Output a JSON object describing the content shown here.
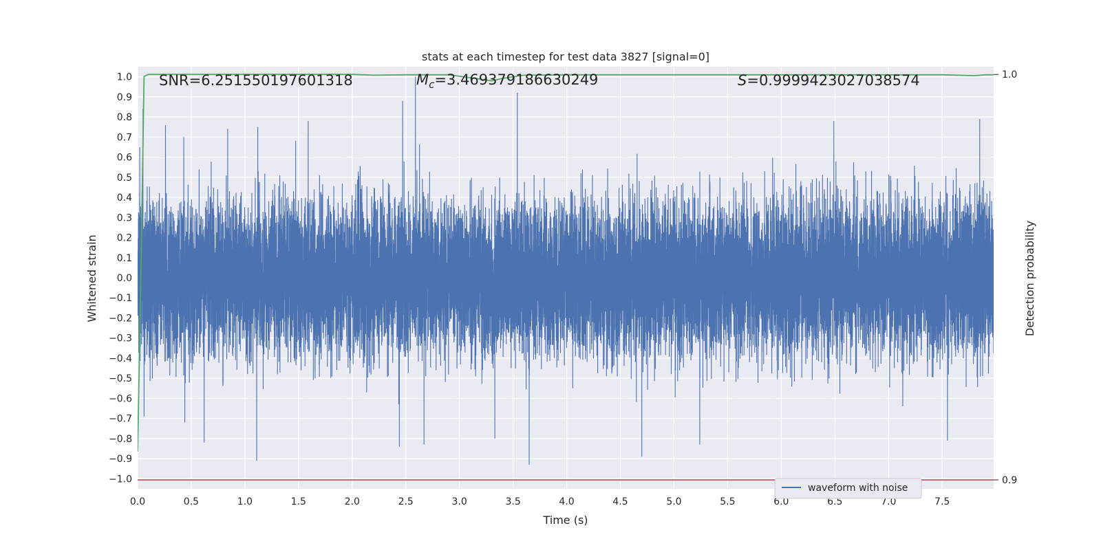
{
  "chart_data": {
    "type": "line",
    "title": "stats at each timestep for test data 3827 [signal=0]",
    "xlabel": "Time (s)",
    "ylabel": "Whitened strain",
    "y2label": "Detection probability",
    "xlim": [
      0.0,
      7.98
    ],
    "ylim": [
      -1.05,
      1.05
    ],
    "y2lim": [
      0.8978,
      1.0019
    ],
    "grid": true,
    "legend_position": "bottom-right",
    "xticks": [
      "0.0",
      "0.5",
      "1.0",
      "1.5",
      "2.0",
      "2.5",
      "3.0",
      "3.5",
      "4.0",
      "4.5",
      "5.0",
      "5.5",
      "6.0",
      "6.5",
      "7.0",
      "7.5"
    ],
    "xtick_values": [
      0.0,
      0.5,
      1.0,
      1.5,
      2.0,
      2.5,
      3.0,
      3.5,
      4.0,
      4.5,
      5.0,
      5.5,
      6.0,
      6.5,
      7.0,
      7.5
    ],
    "yticks": [
      "1.0",
      "0.9",
      "0.8",
      "0.7",
      "0.6",
      "0.5",
      "0.4",
      "0.3",
      "0.2",
      "0.1",
      "0.0",
      "−0.1",
      "−0.2",
      "−0.3",
      "−0.4",
      "−0.5",
      "−0.6",
      "−0.7",
      "−0.8",
      "−0.9",
      "−1.0"
    ],
    "ytick_values": [
      1.0,
      0.9,
      0.8,
      0.7,
      0.6,
      0.5,
      0.4,
      0.3,
      0.2,
      0.1,
      0.0,
      -0.1,
      -0.2,
      -0.3,
      -0.4,
      -0.5,
      -0.6,
      -0.7,
      -0.8,
      -0.9,
      -1.0
    ],
    "y2ticks": [
      "1.0",
      "0.9"
    ],
    "y2tick_values": [
      1.0,
      0.9
    ],
    "annotations": {
      "snr": "SNR=6.251550197601318",
      "mc_symbol": "M",
      "mc_sub": "c",
      "mc_value": "=3.469379186630249",
      "s_symbol": "S",
      "s_value": "=0.9999423027038574"
    },
    "series": [
      {
        "name": "waveform with noise",
        "color": "#4c72b0",
        "axis": "left",
        "sample_rate_hz": 2048,
        "duration_s": 7.98,
        "typical_amplitude": 0.3,
        "peaks": [
          {
            "t": 0.02,
            "y": 0.65
          },
          {
            "t": 0.05,
            "y": 0.84
          },
          {
            "t": 0.26,
            "y": 0.76
          },
          {
            "t": 0.43,
            "y": 0.7
          },
          {
            "t": 0.84,
            "y": 0.74
          },
          {
            "t": 1.12,
            "y": 0.75
          },
          {
            "t": 1.59,
            "y": 0.78
          },
          {
            "t": 2.47,
            "y": 0.88
          },
          {
            "t": 2.59,
            "y": 1.0
          },
          {
            "t": 3.54,
            "y": 0.92
          },
          {
            "t": 3.65,
            "y": 0.91
          },
          {
            "t": 6.49,
            "y": 0.78
          },
          {
            "t": 7.85,
            "y": 0.79
          }
        ],
        "troughs": [
          {
            "t": 0.06,
            "y": -0.69
          },
          {
            "t": 0.44,
            "y": -0.72
          },
          {
            "t": 0.62,
            "y": -0.82
          },
          {
            "t": 1.11,
            "y": -0.91
          },
          {
            "t": 2.44,
            "y": -0.84
          },
          {
            "t": 2.67,
            "y": -0.83
          },
          {
            "t": 3.33,
            "y": -0.8
          },
          {
            "t": 3.65,
            "y": -0.93
          },
          {
            "t": 4.7,
            "y": -0.89
          },
          {
            "t": 5.24,
            "y": -0.83
          },
          {
            "t": 7.55,
            "y": -0.81
          }
        ]
      },
      {
        "name": "",
        "color": "#55a868",
        "axis": "right",
        "t": [
          0.0,
          0.03,
          0.06,
          0.1,
          0.5,
          1.0,
          1.5,
          2.0,
          2.2,
          2.5,
          2.9,
          3.1,
          3.3,
          3.4,
          3.6,
          4.0,
          4.5,
          5.0,
          5.5,
          6.0,
          6.5,
          7.0,
          7.5,
          7.8,
          7.9,
          7.98
        ],
        "values": [
          0.907,
          0.95,
          0.9995,
          1.0,
          1.0,
          1.0,
          1.0,
          1.0,
          0.9998,
          0.9999,
          0.9999,
          0.9992,
          0.9984,
          0.999,
          0.9998,
          0.9999,
          0.9999,
          0.9999,
          0.9999,
          0.9999,
          0.9999,
          0.9999,
          0.9999,
          0.9997,
          0.9999,
          0.9999
        ]
      },
      {
        "name": "",
        "color": "#c44e52",
        "axis": "right",
        "t": [
          0.0,
          7.98
        ],
        "values": [
          0.9,
          0.9
        ]
      }
    ]
  }
}
